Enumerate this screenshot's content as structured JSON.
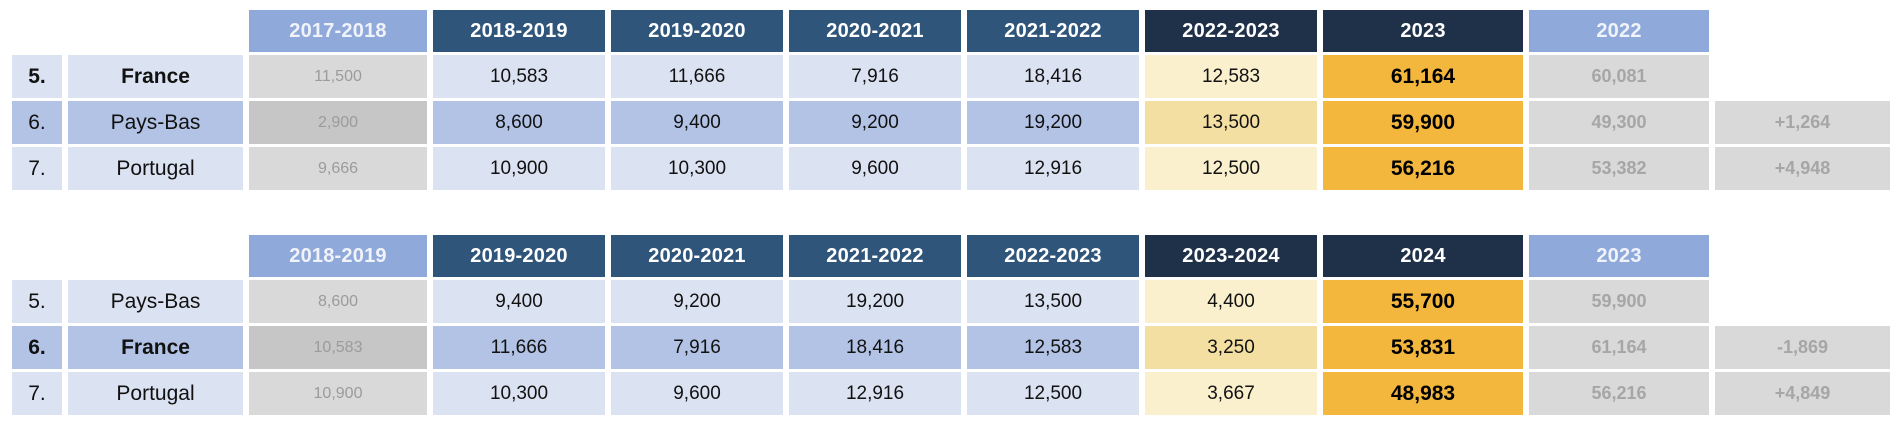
{
  "chart_data": [
    {
      "type": "table",
      "name": "ranking-season-2023",
      "columns": [
        "",
        "",
        "2017-2018",
        "2018-2019",
        "2019-2020",
        "2020-2021",
        "2021-2022",
        "2022-2023",
        "2023",
        "2022",
        ""
      ],
      "rows": [
        [
          "5.",
          "France",
          "11,500",
          "10,583",
          "11,666",
          "7,916",
          "18,416",
          "12,583",
          "61,164",
          "60,081",
          ""
        ],
        [
          "6.",
          "Pays-Bas",
          "2,900",
          "8,600",
          "9,400",
          "9,200",
          "19,200",
          "13,500",
          "59,900",
          "49,300",
          "+1,264"
        ],
        [
          "7.",
          "Portugal",
          "9,666",
          "10,900",
          "10,300",
          "9,600",
          "12,916",
          "12,500",
          "56,216",
          "53,382",
          "+4,948"
        ]
      ],
      "highlighted_row": "France",
      "layout": {
        "grid": false,
        "legend": "none"
      }
    },
    {
      "type": "table",
      "name": "ranking-season-2024",
      "columns": [
        "",
        "",
        "2018-2019",
        "2019-2020",
        "2020-2021",
        "2021-2022",
        "2022-2023",
        "2023-2024",
        "2024",
        "2023",
        ""
      ],
      "rows": [
        [
          "5.",
          "Pays-Bas",
          "8,600",
          "9,400",
          "9,200",
          "19,200",
          "13,500",
          "4,400",
          "55,700",
          "59,900",
          ""
        ],
        [
          "6.",
          "France",
          "10,583",
          "11,666",
          "7,916",
          "18,416",
          "12,583",
          "3,250",
          "53,831",
          "61,164",
          "-1,869"
        ],
        [
          "7.",
          "Portugal",
          "10,900",
          "10,300",
          "9,600",
          "12,916",
          "12,500",
          "3,667",
          "48,983",
          "56,216",
          "+4,849"
        ]
      ],
      "highlighted_row": "France",
      "layout": {
        "grid": false,
        "legend": "none"
      }
    }
  ],
  "colors": {
    "header_periwinkle": "#8FA9DB",
    "header_navy": "#30557A",
    "header_dark_navy": "#1F3148",
    "row_band_light": "#DBE2F1",
    "row_band_medium": "#B3C3E5",
    "gray_cell_light": "#D9D9D9",
    "gray_cell_medium": "#C6C6C6",
    "cream_cell_light": "#FBF0CE",
    "cream_cell_medium": "#F3DFA2",
    "total_gold": "#F3B73E",
    "muted_text": "#A6A6A6"
  }
}
